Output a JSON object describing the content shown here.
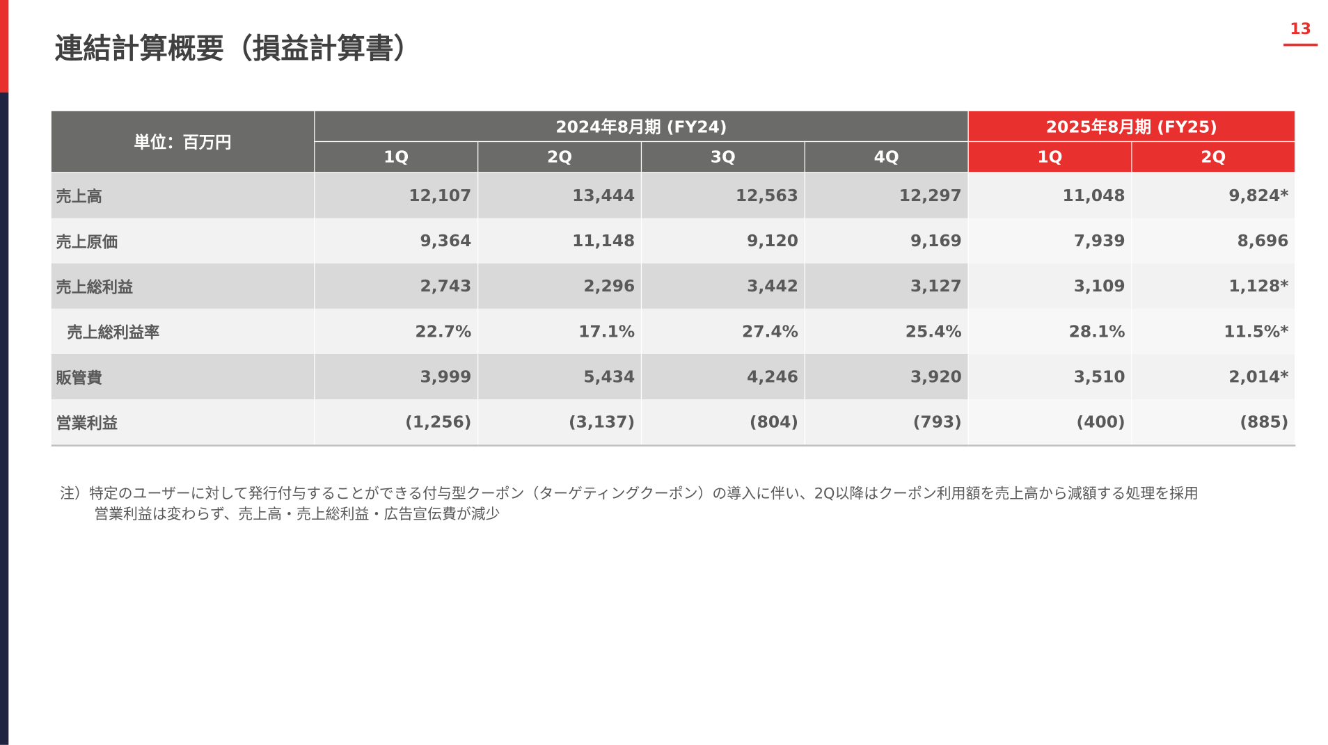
{
  "header": {
    "title": "連結計算概要（損益計算書）",
    "page_number": "13"
  },
  "table": {
    "unit_label": "単位：百万円",
    "periods": [
      {
        "label": "2024年8月期 (FY24)",
        "quarters": [
          "1Q",
          "2Q",
          "3Q",
          "4Q"
        ]
      },
      {
        "label": "2025年8月期 (FY25)",
        "quarters": [
          "1Q",
          "2Q"
        ]
      }
    ],
    "rows": [
      {
        "label": "売上高",
        "values": [
          "12,107",
          "13,444",
          "12,563",
          "12,297",
          "11,048",
          "9,824*"
        ]
      },
      {
        "label": "売上原価",
        "values": [
          "9,364",
          "11,148",
          "9,120",
          "9,169",
          "7,939",
          "8,696"
        ]
      },
      {
        "label": "売上総利益",
        "values": [
          "2,743",
          "2,296",
          "3,442",
          "3,127",
          "3,109",
          "1,128*"
        ]
      },
      {
        "label": "売上総利益率",
        "values": [
          "22.7%",
          "17.1%",
          "27.4%",
          "25.4%",
          "28.1%",
          "11.5%*"
        ]
      },
      {
        "label": "販管費",
        "values": [
          "3,999",
          "5,434",
          "4,246",
          "3,920",
          "3,510",
          "2,014*"
        ]
      },
      {
        "label": "営業利益",
        "values": [
          "(1,256)",
          "(3,137)",
          "(804)",
          "(793)",
          "(400)",
          "(885)"
        ]
      }
    ]
  },
  "notes": [
    "注）特定のユーザーに対して発行付与することができる付与型クーポン（ターゲティングクーポン）の導入に伴い、2Q以降はクーポン利用額を売上高から減額する処理を採用",
    "営業利益は変わらず、売上高・売上総利益・広告宣伝費が減少"
  ]
}
